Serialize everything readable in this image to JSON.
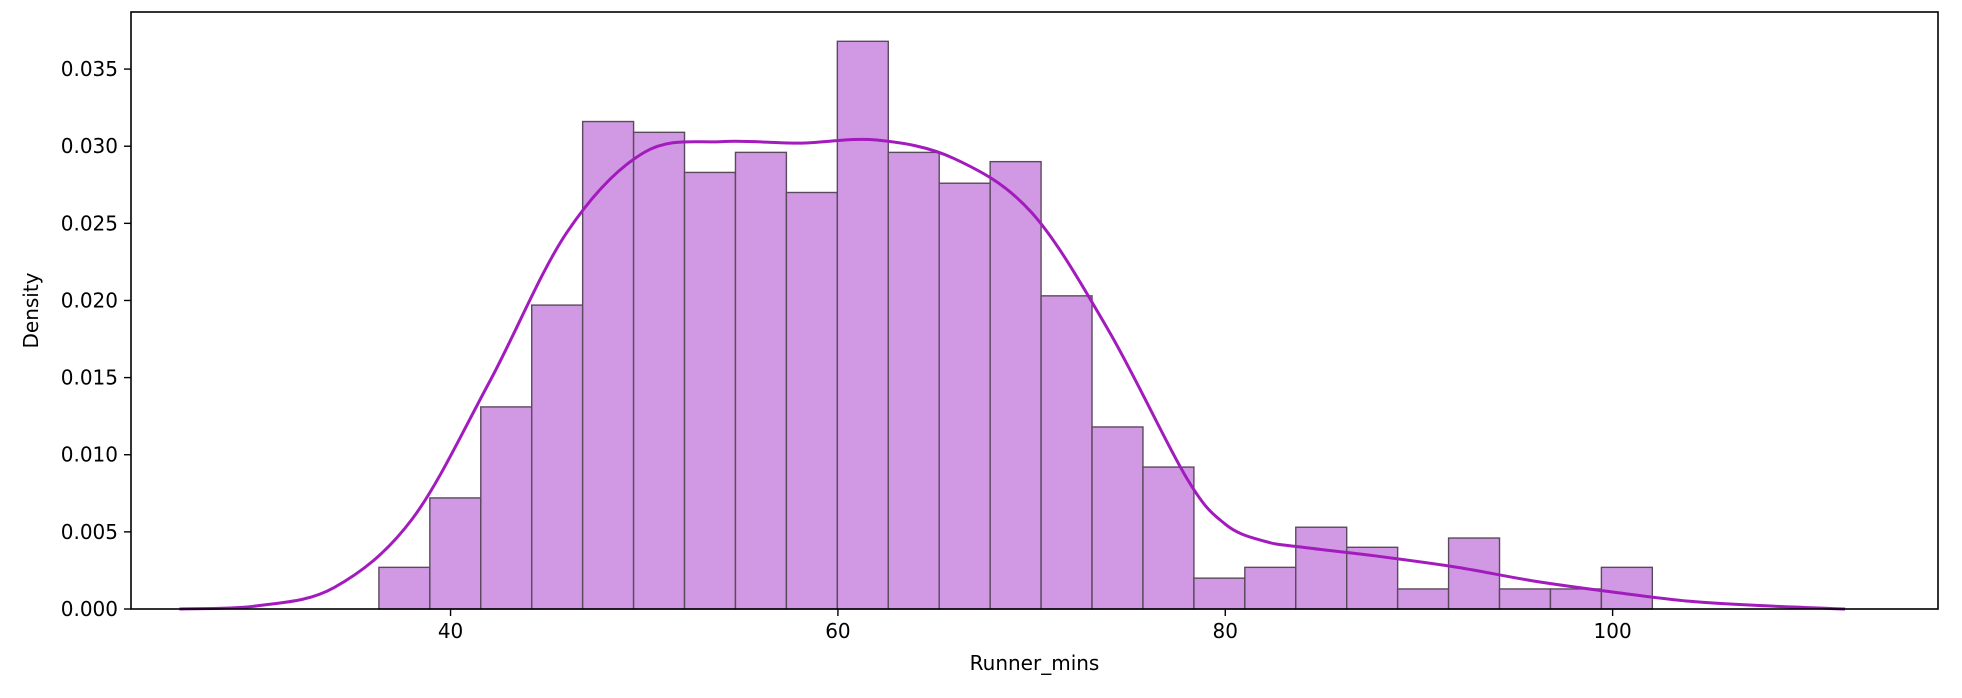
{
  "chart_data": {
    "type": "histogram",
    "xlabel": "Runner_mins",
    "ylabel": "Density",
    "xlim": [
      23.5,
      116.8
    ],
    "ylim": [
      0,
      0.0387
    ],
    "xticks": [
      40,
      60,
      80,
      100
    ],
    "yticks": [
      0.0,
      0.005,
      0.01,
      0.015,
      0.02,
      0.025,
      0.03,
      0.035
    ],
    "ytick_labels": [
      "0.000",
      "0.005",
      "0.010",
      "0.015",
      "0.020",
      "0.025",
      "0.030",
      "0.035"
    ],
    "grid": false,
    "bins": {
      "start": 36.3,
      "width": 2.63,
      "values": [
        0.0027,
        0.0072,
        0.0131,
        0.0197,
        0.0316,
        0.0309,
        0.0283,
        0.0296,
        0.027,
        0.0368,
        0.0296,
        0.0276,
        0.029,
        0.0203,
        0.0118,
        0.0092,
        0.002,
        0.0027,
        0.0053,
        0.004,
        0.0013,
        0.0046,
        0.0013,
        0.0013,
        0.0027
      ]
    },
    "kde": {
      "x": [
        26.0,
        30.0,
        34.0,
        38.0,
        42.0,
        46.0,
        50.0,
        54.0,
        58.0,
        62.0,
        66.0,
        70.0,
        74.0,
        78.0,
        80.0,
        82.0,
        84.0,
        88.0,
        92.0,
        96.0,
        100.0,
        104.0,
        108.0,
        112.0
      ],
      "y": [
        0.0,
        0.0002,
        0.0014,
        0.0058,
        0.0147,
        0.0244,
        0.0296,
        0.0303,
        0.0302,
        0.0304,
        0.0292,
        0.0257,
        0.018,
        0.0085,
        0.0055,
        0.0044,
        0.004,
        0.0034,
        0.0027,
        0.0018,
        0.0011,
        0.0005,
        0.0002,
        0.0
      ]
    },
    "colors": {
      "bar_fill": "#d198e3",
      "bar_edge": "#5a4a5e",
      "kde_line": "#a21bbd",
      "axis": "#000000"
    }
  }
}
